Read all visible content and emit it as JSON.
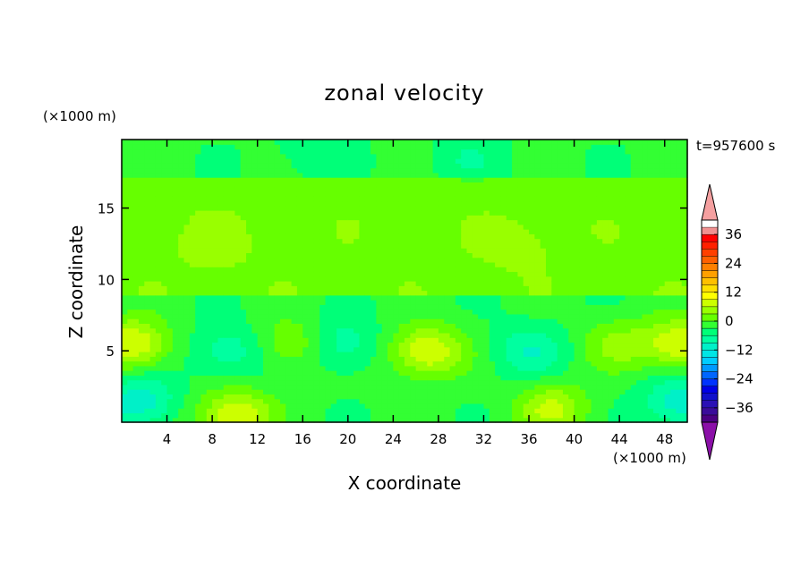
{
  "chart_data": {
    "type": "heatmap",
    "title": "zonal velocity",
    "xlabel": "X coordinate",
    "ylabel": "Z coordinate",
    "x_unit": "(×1000 m)",
    "y_unit": "(×1000 m)",
    "time_label": "t=957600 s",
    "xlim": [
      0,
      50
    ],
    "ylim": [
      0,
      19.8
    ],
    "x_ticks": [
      4,
      8,
      12,
      16,
      20,
      24,
      28,
      32,
      36,
      40,
      44,
      48
    ],
    "y_ticks": [
      5,
      10,
      15
    ],
    "colorbar": {
      "levels": [
        -42,
        -39,
        -36,
        -33,
        -30,
        -27,
        -24,
        -21,
        -18,
        -15,
        -12,
        -9,
        -6,
        -3,
        0,
        3,
        6,
        9,
        12,
        15,
        18,
        21,
        24,
        27,
        30,
        33,
        36,
        39,
        42
      ],
      "tick_labels": [
        "36",
        "24",
        "12",
        "0",
        "−12",
        "−24",
        "−36"
      ],
      "tick_values": [
        36,
        24,
        12,
        0,
        -12,
        -24,
        -36
      ],
      "colors": [
        "#4b0082",
        "#3a0c9a",
        "#2a10b5",
        "#1010cc",
        "#0000e6",
        "#0033ff",
        "#0066ff",
        "#0099ff",
        "#00ccff",
        "#00e5e5",
        "#00f0c8",
        "#00ffa0",
        "#00ff78",
        "#33ff33",
        "#66ff00",
        "#99ff00",
        "#ccff00",
        "#ffff00",
        "#ffe000",
        "#ffc000",
        "#ffa000",
        "#ff8000",
        "#ff6000",
        "#ff4000",
        "#ff2000",
        "#ff0000",
        "#f09090"
      ],
      "over_color": "#f5a0a0",
      "under_color": "#8b10a8",
      "extend": "both"
    },
    "field_features": [
      {
        "x": 1.0,
        "z": 5.5,
        "value": 12
      },
      {
        "x": 10.0,
        "z": 0.5,
        "value": 12
      },
      {
        "x": 15.0,
        "z": 5.5,
        "value": 6
      },
      {
        "x": 27.0,
        "z": 5.0,
        "value": 12
      },
      {
        "x": 38.0,
        "z": 1.0,
        "value": 9
      },
      {
        "x": 44.0,
        "z": 5.5,
        "value": 6
      },
      {
        "x": 49.5,
        "z": 5.5,
        "value": 12
      },
      {
        "x": 9.5,
        "z": 5.0,
        "value": -6
      },
      {
        "x": 19.5,
        "z": 5.5,
        "value": -6
      },
      {
        "x": 1.5,
        "z": 1.5,
        "value": -9
      },
      {
        "x": 49.5,
        "z": 1.5,
        "value": -9
      },
      {
        "x": 36.0,
        "z": 5.0,
        "value": -6
      },
      {
        "x": 17.0,
        "z": 19.0,
        "value": -3
      },
      {
        "x": 30.5,
        "z": 18.5,
        "value": -3
      },
      {
        "x": 35.0,
        "z": 12.5,
        "value": 3
      },
      {
        "x": 8.0,
        "z": 12.5,
        "value": 3
      }
    ]
  }
}
